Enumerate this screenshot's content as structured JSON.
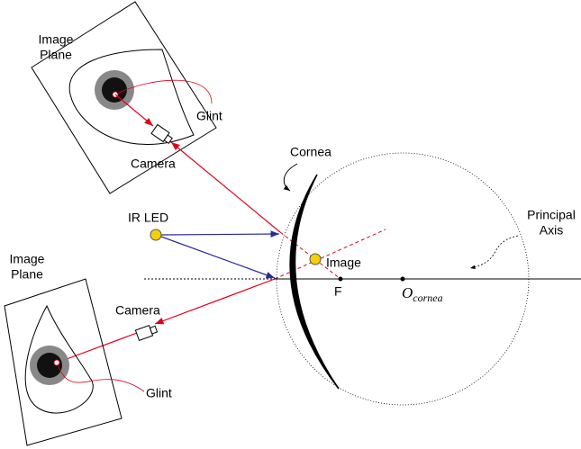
{
  "labels": {
    "top_plane": [
      "Image",
      "Plane"
    ],
    "top_glint": "Glint",
    "top_camera": "Camera",
    "cornea": "Cornea",
    "ir_led": "IR LED",
    "image": "Image",
    "focus": "F",
    "center": {
      "main": "O",
      "sub": "cornea"
    },
    "axis": [
      "Principal",
      "Axis"
    ],
    "bottom_plane": [
      "Image",
      "Plane"
    ],
    "bottom_camera": "Camera",
    "bottom_glint": "Glint"
  }
}
